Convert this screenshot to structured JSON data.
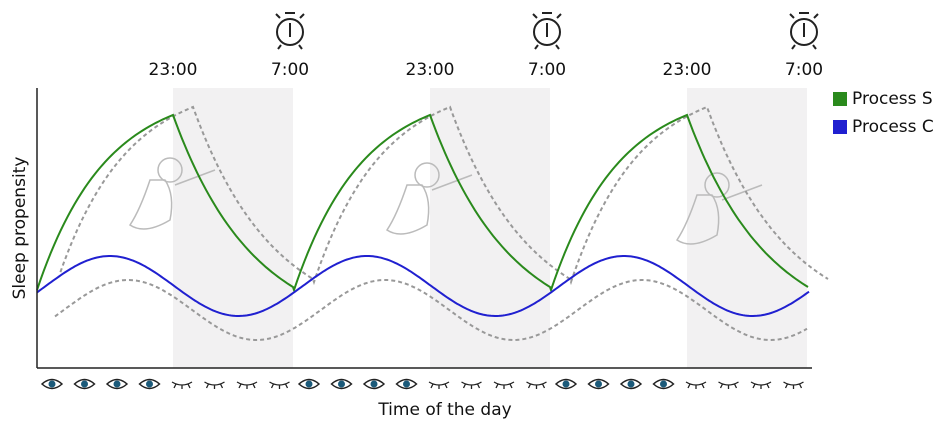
{
  "time_labels": [
    "23:00",
    "7:00",
    "23:00",
    "7:00",
    "23:00",
    "7:00"
  ],
  "legend": [
    {
      "label": "Process S",
      "color": "#2a8a1c"
    },
    {
      "label": "Process C",
      "color": "#2020d0"
    }
  ],
  "y_axis_label": "Sleep propensity",
  "x_axis_label": "Time of the day"
}
